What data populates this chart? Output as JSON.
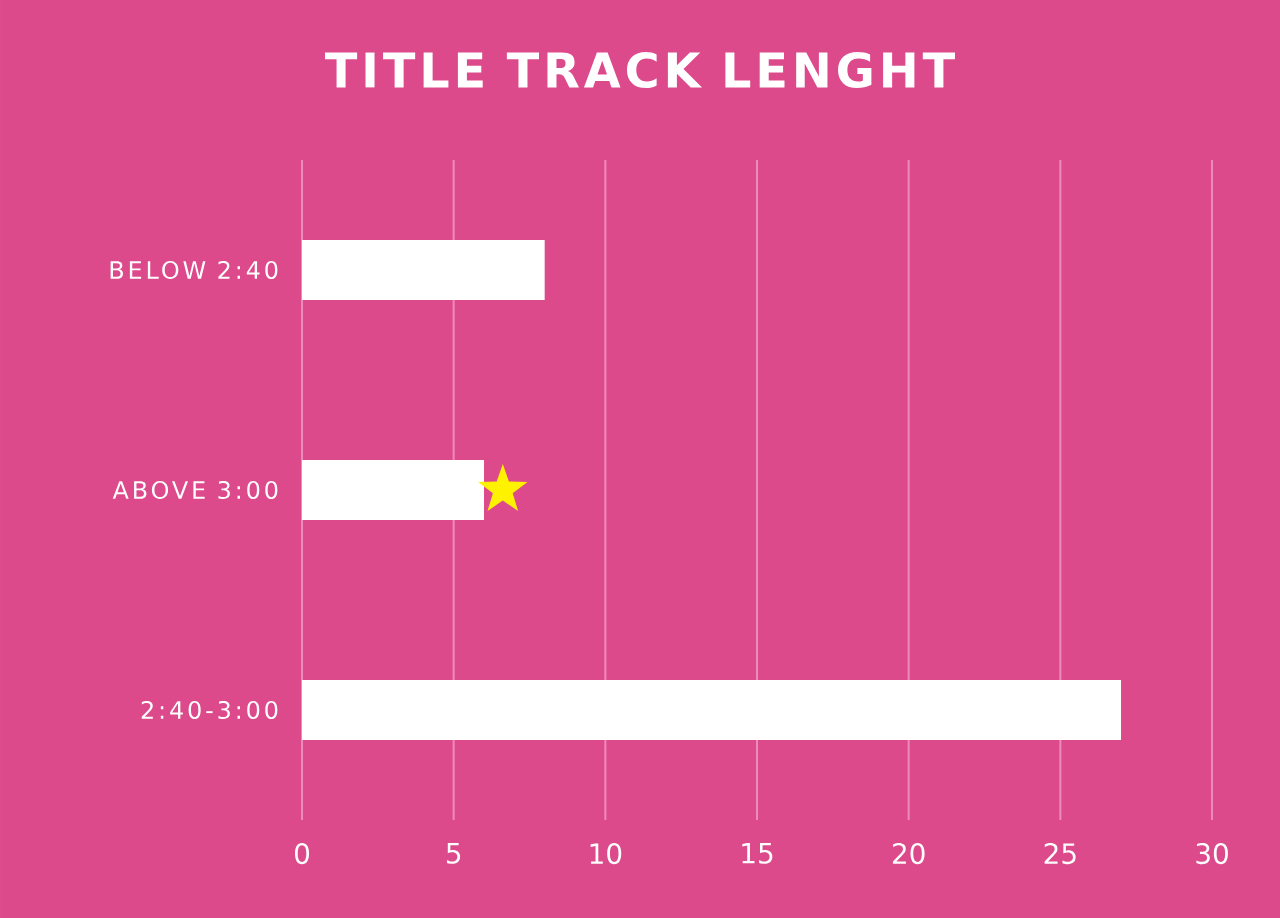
{
  "chart_data": {
    "type": "bar",
    "orientation": "horizontal",
    "title": "TITLE TRACK LENGHT",
    "categories": [
      "BELOW 2:40",
      "ABOVE 3:00",
      "2:40-3:00"
    ],
    "values": [
      8,
      6,
      27
    ],
    "color": "#ffffff",
    "xlim": [
      0,
      30
    ],
    "xticks": [
      0,
      5,
      10,
      15,
      20,
      25,
      30
    ],
    "grid": "x"
  }
}
